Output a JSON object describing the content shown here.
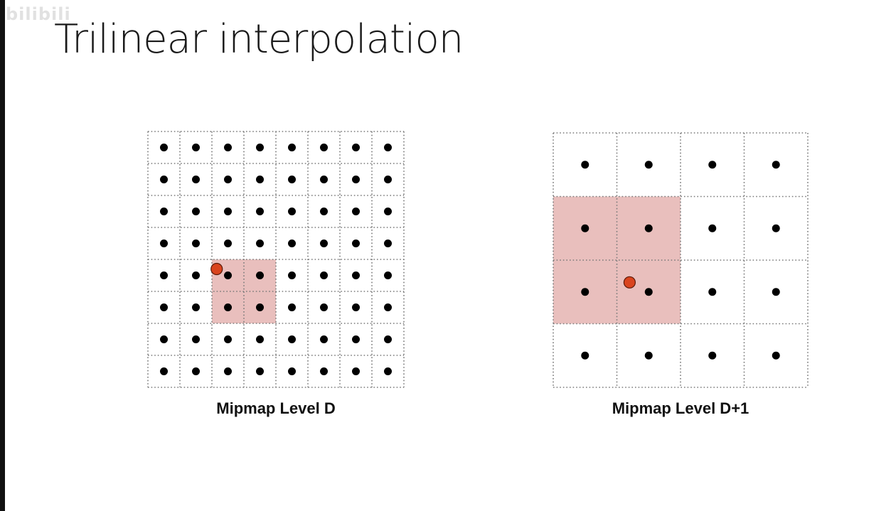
{
  "watermark": "bilibili",
  "title": "Trilinear interpolation",
  "colors": {
    "grid_line": "#7a7a7a",
    "texel_dot": "#000000",
    "highlight": "#e9bfbd",
    "sample_point": "#d9441e",
    "sample_outline": "#5a1a0a"
  },
  "levels": [
    {
      "caption": "Mipmap Level D",
      "grid_size": 8,
      "highlight_cells": {
        "col_start": 2,
        "row_start": 4,
        "cols": 2,
        "rows": 2
      },
      "sample_point": {
        "col": 2.15,
        "row": 4.3
      }
    },
    {
      "caption": "Mipmap Level D+1",
      "grid_size": 4,
      "highlight_cells": {
        "col_start": 0,
        "row_start": 1,
        "cols": 2,
        "rows": 2
      },
      "sample_point": {
        "col": 1.2,
        "row": 2.35
      }
    }
  ]
}
